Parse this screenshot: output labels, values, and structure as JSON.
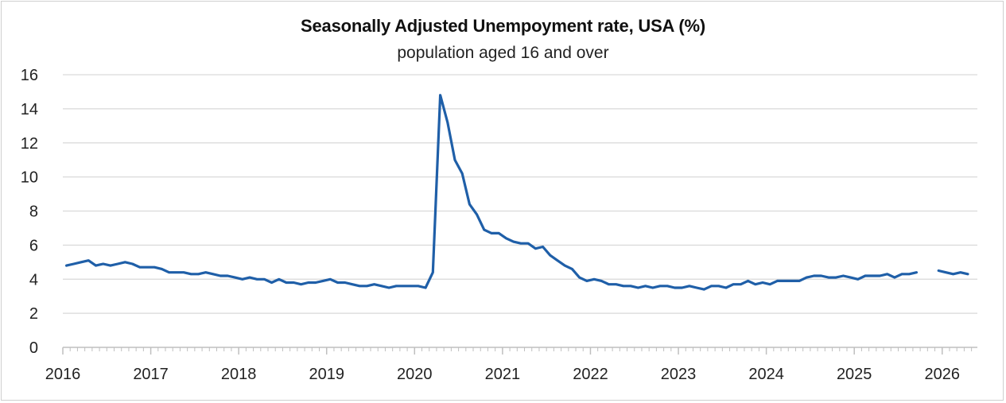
{
  "chart_data": {
    "type": "line",
    "title": "Seasonally Adjusted Unempoyment rate, USA (%)",
    "subtitle": "population aged 16 and over",
    "xlabel": "",
    "ylabel": "",
    "ylim": [
      0,
      16
    ],
    "y_ticks": [
      "0",
      "2",
      "4",
      "6",
      "8",
      "10",
      "12",
      "14",
      "16"
    ],
    "x_ticks": [
      "2016",
      "2017",
      "2018",
      "2019",
      "2020",
      "2021",
      "2022",
      "2023",
      "2024",
      "2025",
      "2026"
    ],
    "grid": true,
    "legend": "none",
    "series": [
      {
        "color": "#1f5fa8",
        "x_start": "2016-01",
        "values": [
          4.8,
          4.9,
          5.0,
          5.1,
          4.8,
          4.9,
          4.8,
          4.9,
          5.0,
          4.9,
          4.7,
          4.7,
          4.7,
          4.6,
          4.4,
          4.4,
          4.4,
          4.3,
          4.3,
          4.4,
          4.3,
          4.2,
          4.2,
          4.1,
          4.0,
          4.1,
          4.0,
          4.0,
          3.8,
          4.0,
          3.8,
          3.8,
          3.7,
          3.8,
          3.8,
          3.9,
          4.0,
          3.8,
          3.8,
          3.7,
          3.6,
          3.6,
          3.7,
          3.6,
          3.5,
          3.6,
          3.6,
          3.6,
          3.6,
          3.5,
          4.4,
          14.8,
          13.2,
          11.0,
          10.2,
          8.4,
          7.8,
          6.9,
          6.7,
          6.7,
          6.4,
          6.2,
          6.1,
          6.1,
          5.8,
          5.9,
          5.4,
          5.1,
          4.8,
          4.6,
          4.1,
          3.9,
          4.0,
          3.9,
          3.7,
          3.7,
          3.6,
          3.6,
          3.5,
          3.6,
          3.5,
          3.6,
          3.6,
          3.5,
          3.5,
          3.6,
          3.5,
          3.4,
          3.6,
          3.6,
          3.5,
          3.7,
          3.7,
          3.9,
          3.7,
          3.8,
          3.7,
          3.9,
          3.9,
          3.9,
          3.9,
          4.1,
          4.2,
          4.2,
          4.1,
          4.1,
          4.2,
          4.1,
          4.0,
          4.2,
          4.2,
          4.2,
          4.3,
          4.1,
          4.3,
          4.3,
          4.4,
          null,
          null,
          4.5,
          4.4,
          4.3,
          4.4,
          4.3
        ]
      }
    ]
  }
}
